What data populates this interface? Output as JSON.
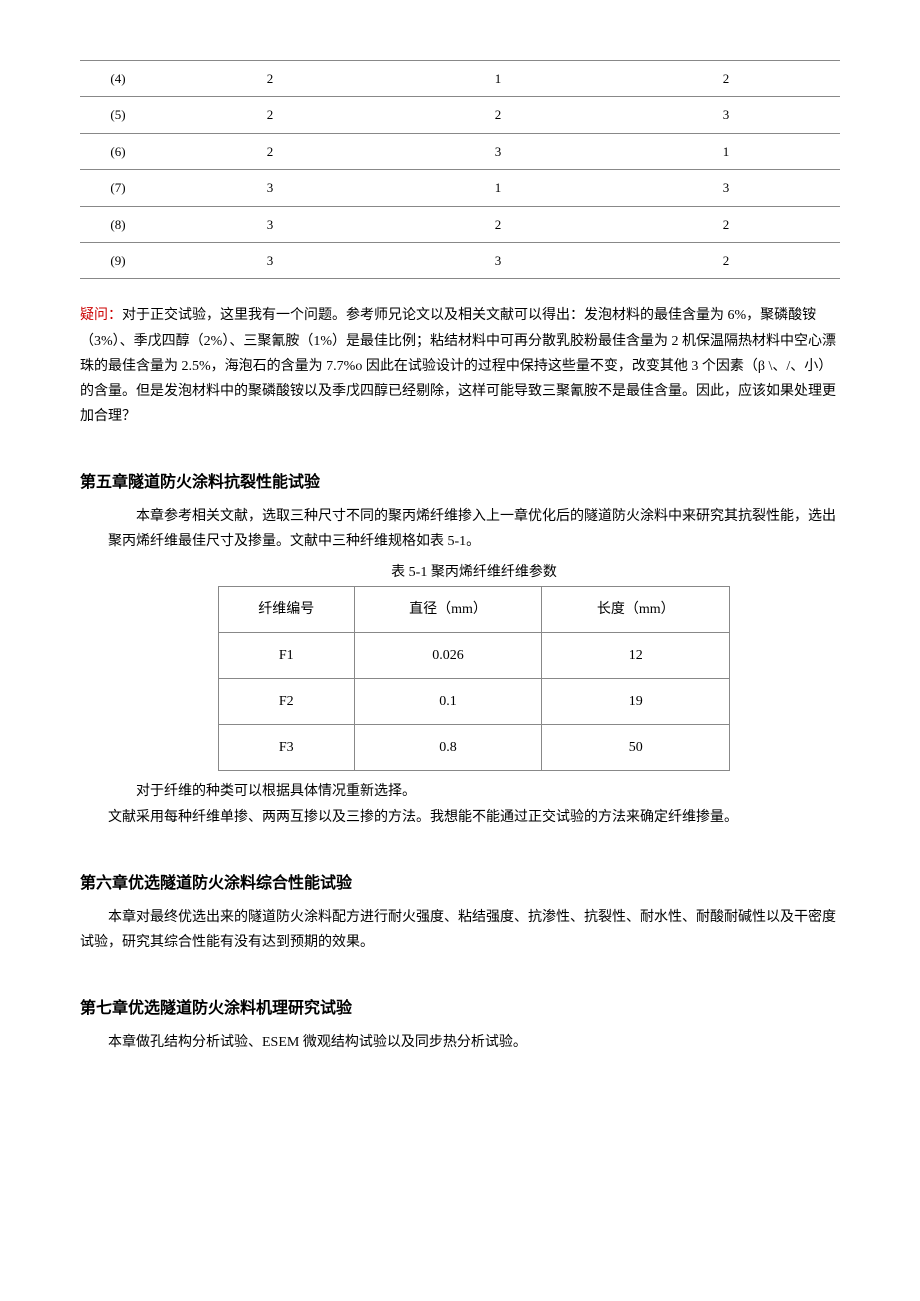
{
  "table1": {
    "rows": [
      [
        "(4)",
        "2",
        "1",
        "2"
      ],
      [
        "(5)",
        "2",
        "2",
        "3"
      ],
      [
        "(6)",
        "2",
        "3",
        "1"
      ],
      [
        "(7)",
        "3",
        "1",
        "3"
      ],
      [
        "(8)",
        "3",
        "2",
        "2"
      ],
      [
        "(9)",
        "3",
        "3",
        "2"
      ]
    ]
  },
  "question": {
    "label": "疑问：",
    "text": "对于正交试验，这里我有一个问题。参考师兄论文以及相关文献可以得出：发泡材料的最佳含量为 6%，聚磷酸铵（3%）、季戊四醇（2%）、三聚氰胺（1%）是最佳比例；粘结材料中可再分散乳胶粉最佳含量为 2 机保温隔热材料中空心漂珠的最佳含量为 2.5%，海泡石的含量为 7.7%o 因此在试验设计的过程中保持这些量不变，改变其他 3 个因素（β \\、/、小）的含量。但是发泡材料中的聚磷酸铵以及季戊四醇已经剔除，这样可能导致三聚氰胺不是最佳含量。因此，应该如果处理更加合理？"
  },
  "ch5": {
    "heading": "第五章隧道防火涂料抗裂性能试验",
    "intro1": "本章参考相关文献，选取三种尺寸不同的聚丙烯纤维掺入上一章优化后的隧道防火涂料中来研究其抗裂性能，选出聚丙烯纤维最佳尺寸及掺量。文献中三种纤维规格如表 5-1。",
    "table_caption": "表 5-1  聚丙烯纤维纤维参数",
    "table2": {
      "headers": [
        "纤维编号",
        "直径（mm）",
        "长度（mm）"
      ],
      "rows": [
        [
          "F1",
          "0.026",
          "12"
        ],
        [
          "F2",
          "0.1",
          "19"
        ],
        [
          "F3",
          "0.8",
          "50"
        ]
      ]
    },
    "note": "对于纤维的种类可以根据具体情况重新选择。",
    "intro2": "文献采用每种纤维单掺、两两互掺以及三掺的方法。我想能不能通过正交试验的方法来确定纤维掺量。"
  },
  "ch6": {
    "heading": "第六章优选隧道防火涂料综合性能试验",
    "text": "本章对最终优选出来的隧道防火涂料配方进行耐火强度、粘结强度、抗渗性、抗裂性、耐水性、耐酸耐碱性以及干密度试验，研究其综合性能有没有达到预期的效果。"
  },
  "ch7": {
    "heading": "第七章优选隧道防火涂料机理研究试验",
    "text": "本章做孔结构分析试验、ESEM 微观结构试验以及同步热分析试验。"
  }
}
